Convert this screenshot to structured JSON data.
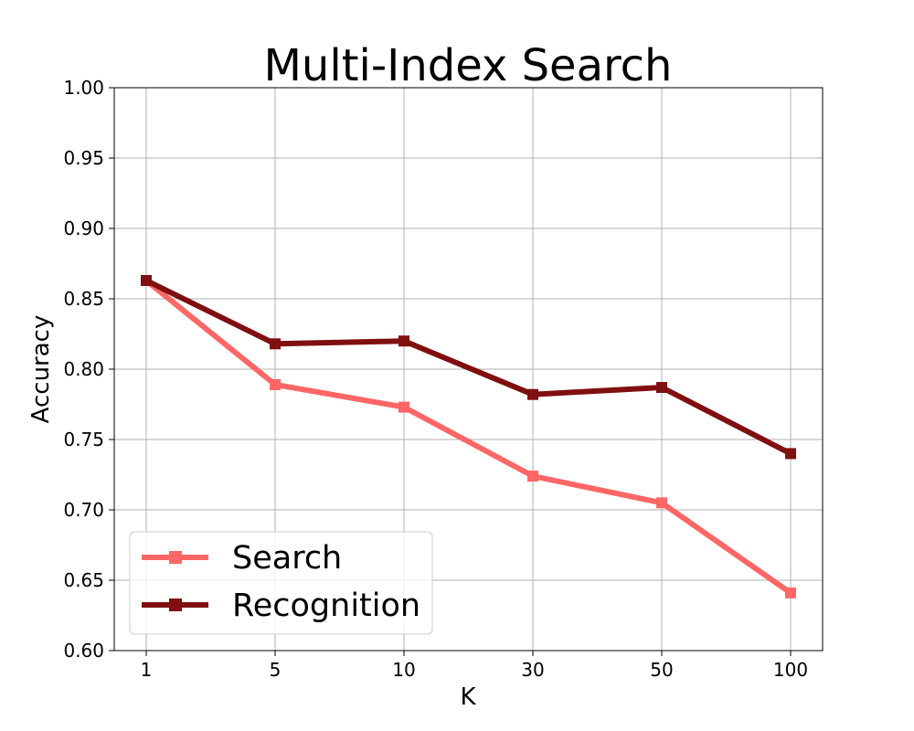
{
  "chart_data": {
    "type": "line",
    "title": "Multi-Index Search",
    "xlabel": "K",
    "ylabel": "Accuracy",
    "categories": [
      "1",
      "5",
      "10",
      "30",
      "50",
      "100"
    ],
    "ylim": [
      0.6,
      1.0
    ],
    "yticks": [
      "0.60",
      "0.65",
      "0.70",
      "0.75",
      "0.80",
      "0.85",
      "0.90",
      "0.95",
      "1.00"
    ],
    "grid": true,
    "legend_position": "lower-left",
    "series": [
      {
        "name": "Search",
        "color": "#ff6666",
        "marker": "square",
        "values": [
          0.863,
          0.789,
          0.773,
          0.724,
          0.705,
          0.641
        ]
      },
      {
        "name": "Recognition",
        "color": "#800f0f",
        "marker": "square",
        "values": [
          0.863,
          0.818,
          0.82,
          0.782,
          0.787,
          0.74
        ]
      }
    ]
  }
}
